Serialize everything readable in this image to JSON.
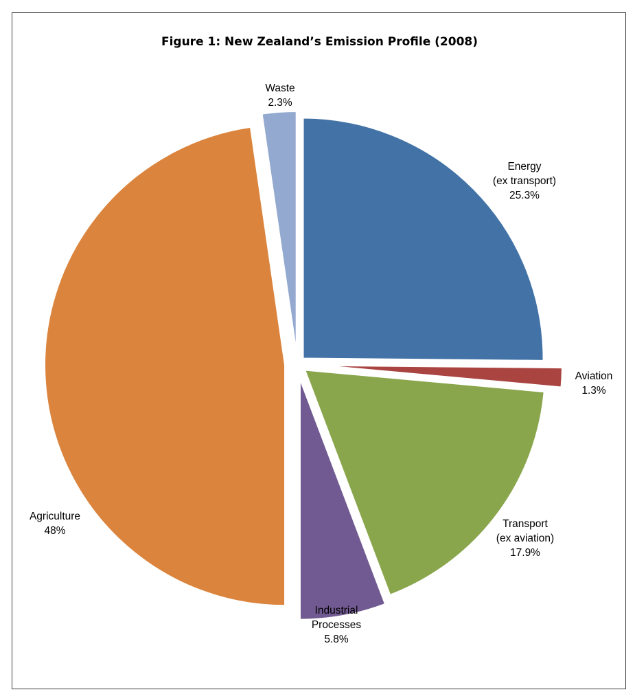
{
  "chart_data": {
    "type": "pie",
    "title": "Figure 1: New Zealand’s Emission Profile (2008)",
    "slices": [
      {
        "name": "Energy",
        "subname": "(ex transport)",
        "value": 25.3,
        "label": "25.3%",
        "color": "#4272A6"
      },
      {
        "name": "Aviation",
        "subname": "",
        "value": 1.3,
        "label": "1.3%",
        "color": "#A94441"
      },
      {
        "name": "Transport",
        "subname": "(ex aviation)",
        "value": 17.9,
        "label": "17.9%",
        "color": "#8AA64D"
      },
      {
        "name": "Industrial",
        "subname": "Processes",
        "value": 5.8,
        "label": "5.8%",
        "color": "#715A91"
      },
      {
        "name": "Agriculture",
        "subname": "",
        "value": 48,
        "label": "48%",
        "color": "#DB843D"
      },
      {
        "name": "Waste",
        "subname": "",
        "value": 2.3,
        "label": "2.3%",
        "color": "#93A9D0"
      }
    ],
    "legend": "none",
    "exploded": true
  }
}
